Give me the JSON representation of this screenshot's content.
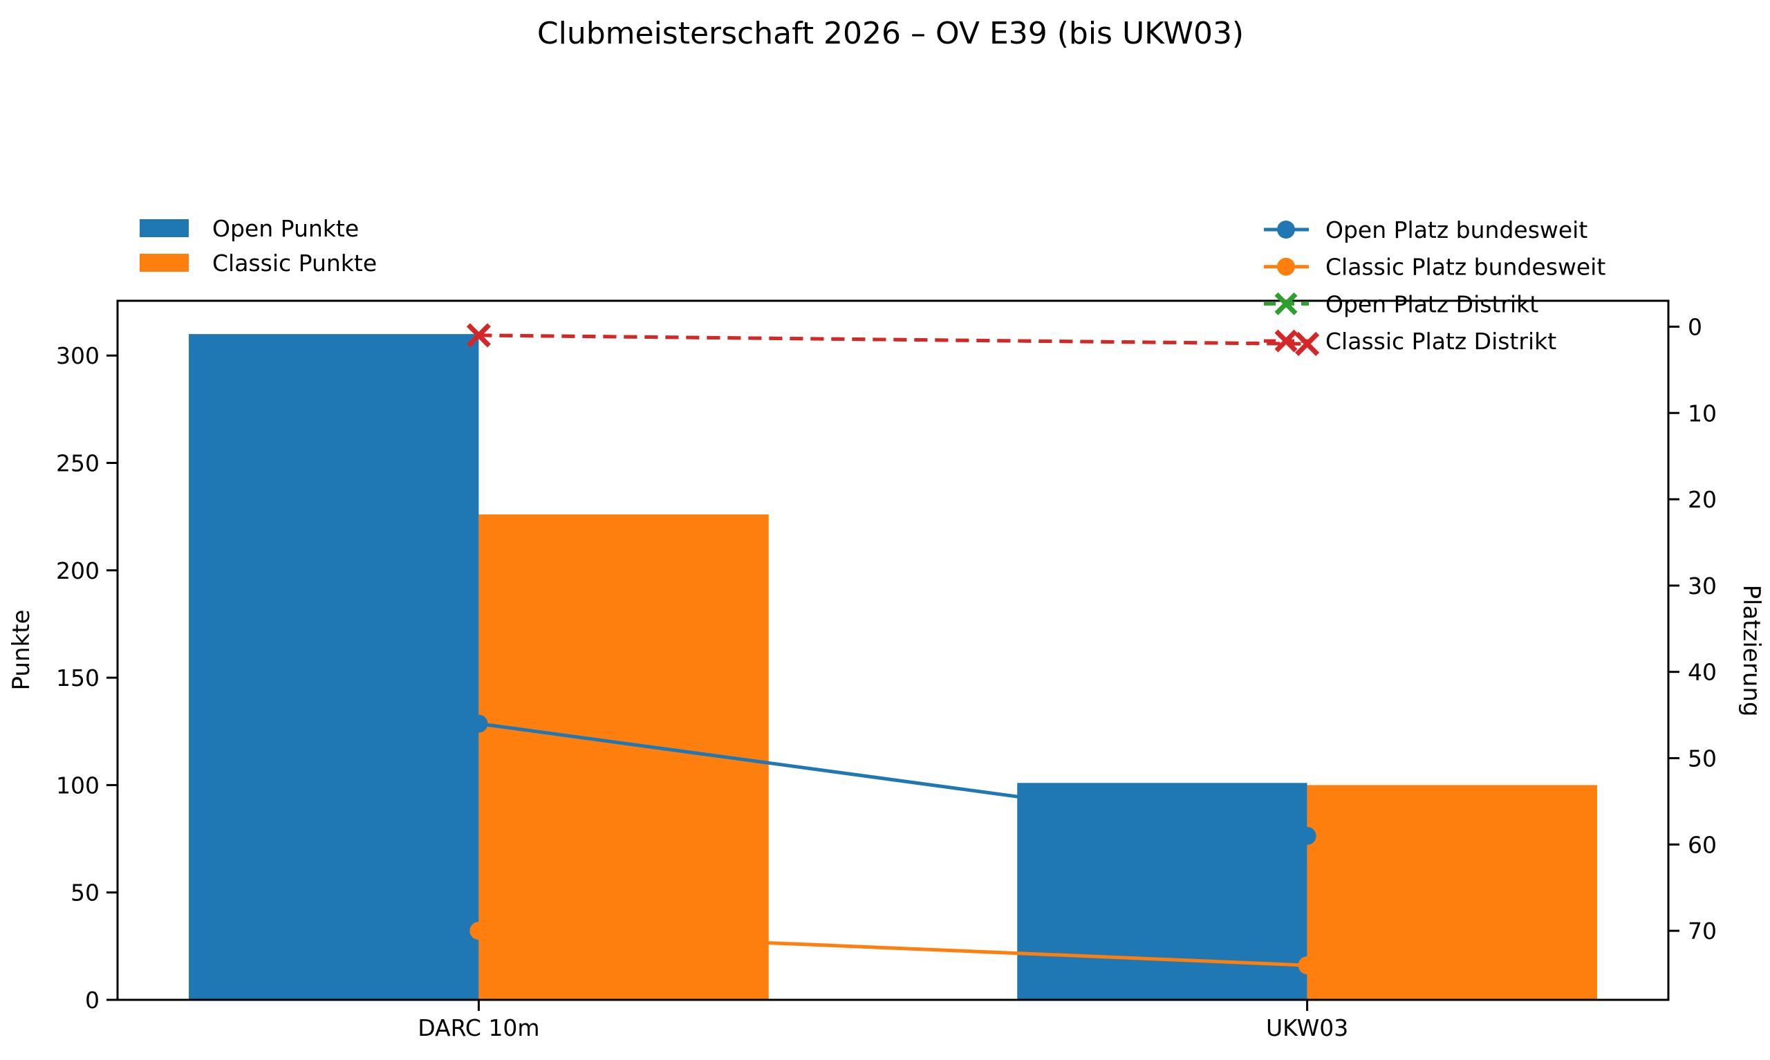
{
  "title": "Clubmeisterschaft 2026 – OV E39 (bis UKW03)",
  "chart_data": {
    "type": "bar+line",
    "categories": [
      "DARC 10m",
      "UKW03"
    ],
    "left_axis": {
      "label": "Punkte",
      "ticks": [
        0,
        50,
        100,
        150,
        200,
        250,
        300
      ],
      "range": [
        0,
        325.5
      ]
    },
    "right_axis": {
      "label": "Platzierung",
      "ticks": [
        0,
        10,
        20,
        30,
        40,
        50,
        60,
        70
      ],
      "range": [
        -3,
        78
      ],
      "inverted": true
    },
    "bar_series": [
      {
        "name": "Open Punkte",
        "color": "#1f77b4",
        "values": [
          310,
          101
        ]
      },
      {
        "name": "Classic Punkte",
        "color": "#ff7f0e",
        "values": [
          226,
          100
        ]
      }
    ],
    "line_series": [
      {
        "name": "Open Platz bundesweit",
        "color": "#1f77b4",
        "dash": false,
        "marker": "circle",
        "values": [
          46,
          59
        ]
      },
      {
        "name": "Classic Platz bundesweit",
        "color": "#ff7f0e",
        "dash": false,
        "marker": "circle",
        "values": [
          70,
          74
        ]
      },
      {
        "name": "Open Platz Distrikt",
        "color": "#2ca02c",
        "dash": true,
        "marker": "x",
        "values": [
          1,
          2
        ]
      },
      {
        "name": "Classic Platz Distrikt",
        "color": "#d62728",
        "dash": true,
        "marker": "x",
        "values": [
          1,
          2
        ]
      }
    ],
    "colors": {
      "axis": "#000000",
      "background": "#ffffff"
    }
  }
}
